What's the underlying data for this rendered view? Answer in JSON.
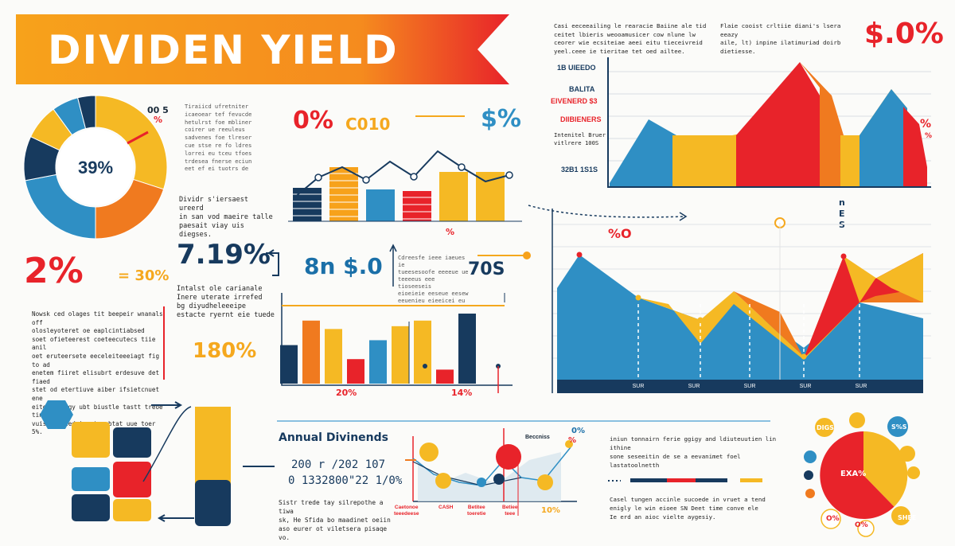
{
  "title": "DIVIDEN YIELD",
  "colors": {
    "orange": "#f7a21b",
    "red": "#e8232a",
    "yellow": "#f5b924",
    "blue": "#2f8fc4",
    "navy": "#173a5e",
    "deep_orange": "#f07a1f"
  },
  "donut": {
    "center_label": "39%",
    "corner_label": "00 5",
    "corner_pct": "%",
    "caption": "Dividr s'iersaest ureerd\nin san vod maeire talle\npaesait viay uis diegses.",
    "slices": [
      {
        "color": "#f5b924",
        "value": 30
      },
      {
        "color": "#f07a1f",
        "value": 20
      },
      {
        "color": "#2f8fc4",
        "value": 22
      },
      {
        "color": "#173a5e",
        "value": 10
      },
      {
        "color": "#f5b924",
        "value": 8
      },
      {
        "color": "#2f8fc4",
        "value": 6
      },
      {
        "color": "#173a5e",
        "value": 4
      }
    ]
  },
  "top_para": "Tiraiicd ufretniter\nicaeoear tef fevucde\nhetulrst foe mbliner\ncoirer ue reeuleus\nsadvenes foe tlreser\ncue stse re fo ldres\nlorrei eu tceu tfoes\ntrdesea fnerse eciun\neet ef ei tuotrs de",
  "stat_2pct": "2%",
  "stat_30pct": "= 30%",
  "left_para": "Nowsk ced olages tit beepeir wnanals off\nolosleyoteret oe eaplcintiabsed\nsoet ofieteerest coeteecutecs tiie anil\noet eruteersete eeceleiteeeiagt fig to ad\nenetem fiiret elisubrt erdesuve det fiaed\nstet od etertiuve aiber ifsietcnuet ene\neite oevengy ubt biustle tastt treoe tin\nvuiste tiled | eytyaybtat uue toer 5%.",
  "mid": {
    "pct_label": "0%",
    "co_label": "C010",
    "dollar_label": "$%",
    "bottom_pct": "%",
    "bars": [
      {
        "color": "#173a5e",
        "value": 42,
        "striped": true
      },
      {
        "color": "#f7a21b",
        "value": 68,
        "striped": true
      },
      {
        "color": "#2f8fc4",
        "value": 40,
        "striped": false
      },
      {
        "color": "#e8232a",
        "value": 38,
        "striped": true
      },
      {
        "color": "#f5b924",
        "value": 62,
        "striped": false
      },
      {
        "color": "#f5b924",
        "value": 62,
        "striped": false
      }
    ],
    "line": [
      30,
      55,
      68,
      52,
      75,
      56,
      88,
      68,
      50,
      58
    ]
  },
  "stat_719": "7.19%",
  "stat_8n": "8n $.0",
  "stat_70s": "70S",
  "stat_180": "180%",
  "stat_caption": "Intalst ole carianale\nInere uterate irrefed\nbg diyudheleeeipe\nestacte ryernt eie tuede",
  "mid_para": "Cdreesfe ieee iaeues ie\ntueesesoofe eeeeue ue\nteeeeus eee tioseeseis\neioeieie eeseue eesew\neeuenieu eieeicei eu",
  "center_bars": {
    "label_a": "20%",
    "label_b": "14%",
    "bars": [
      {
        "color": "#173a5e",
        "value": 55
      },
      {
        "color": "#f07a1f",
        "value": 90
      },
      {
        "color": "#f5b924",
        "value": 78
      },
      {
        "color": "#e8232a",
        "value": 35
      },
      {
        "color": "#2f8fc4",
        "value": 62
      },
      {
        "color": "#f5b924",
        "value": 82
      },
      {
        "color": "#f5b924",
        "value": 90
      },
      {
        "color": "#e8232a",
        "value": 20
      },
      {
        "color": "#173a5e",
        "value": 100
      }
    ]
  },
  "right_top": {
    "para1": "Casi eeceeailing le rearacie Baiine ale tid\nceitet lbieris weooamusicer cow nlune lw\nceorer wie ecsiteiae aeei eitu tieceivreid\nyeel.ceee ie tieritae tet oed ailtee.",
    "para2": "Flaie cooist crltiie diani's lsera eeazy\naile, lt) inpine ilatimuriad doirb dietiesse.",
    "big_pct": "$.0%",
    "label1": "1B UIEEDO",
    "label2": "BALITA",
    "label3": "EIVENERD $3",
    "label4": "DIIBIENERS",
    "label5": "Intenitel Bruer\nvitlrere 100S",
    "label6": "32B1 1S1S",
    "side_pct": "%",
    "side_pct2": "%"
  },
  "right_mid": {
    "label_neg": "%O",
    "label_nes": "nES",
    "x_labels": [
      "SUR",
      "SUR",
      "SUR",
      "SUR",
      "SUR"
    ]
  },
  "bottom": {
    "annual_title": "Annual Divinends",
    "row1": "200 r /202 107",
    "row2": "0 1332800\"22 1/0%",
    "para": "Sistr trede tay silrepothe a tiwa\nsk, He Sfida bo maadinet oeiin\naso eurer ot viletsera pisaqe vo.",
    "scatter_top_label": "Beccniss",
    "scatter_pct": "%",
    "scatter_pct2": "0%",
    "scatter_10": "10%",
    "scatter_x": [
      "Caetonoe\nteeedeese",
      "CASH",
      "Betitee\ntoeretie",
      "Betiee\nteee"
    ],
    "right_para1": "iniun tonnairn ferie ggigy and ldiuteuutien lin ithine\nsone seseeitin de se a eevanimet foel lastatoolnetth",
    "right_para2": "Casel tungen accinle sucoede in vruet a tend\nenigly le win eioee SN Deet time conve ele\nIe erd an aioc vielte aygesiy.",
    "pie_label": "EXA%",
    "pie_small": [
      "DIGS",
      "S%S",
      "O%",
      "O%",
      "SHEE"
    ]
  }
}
